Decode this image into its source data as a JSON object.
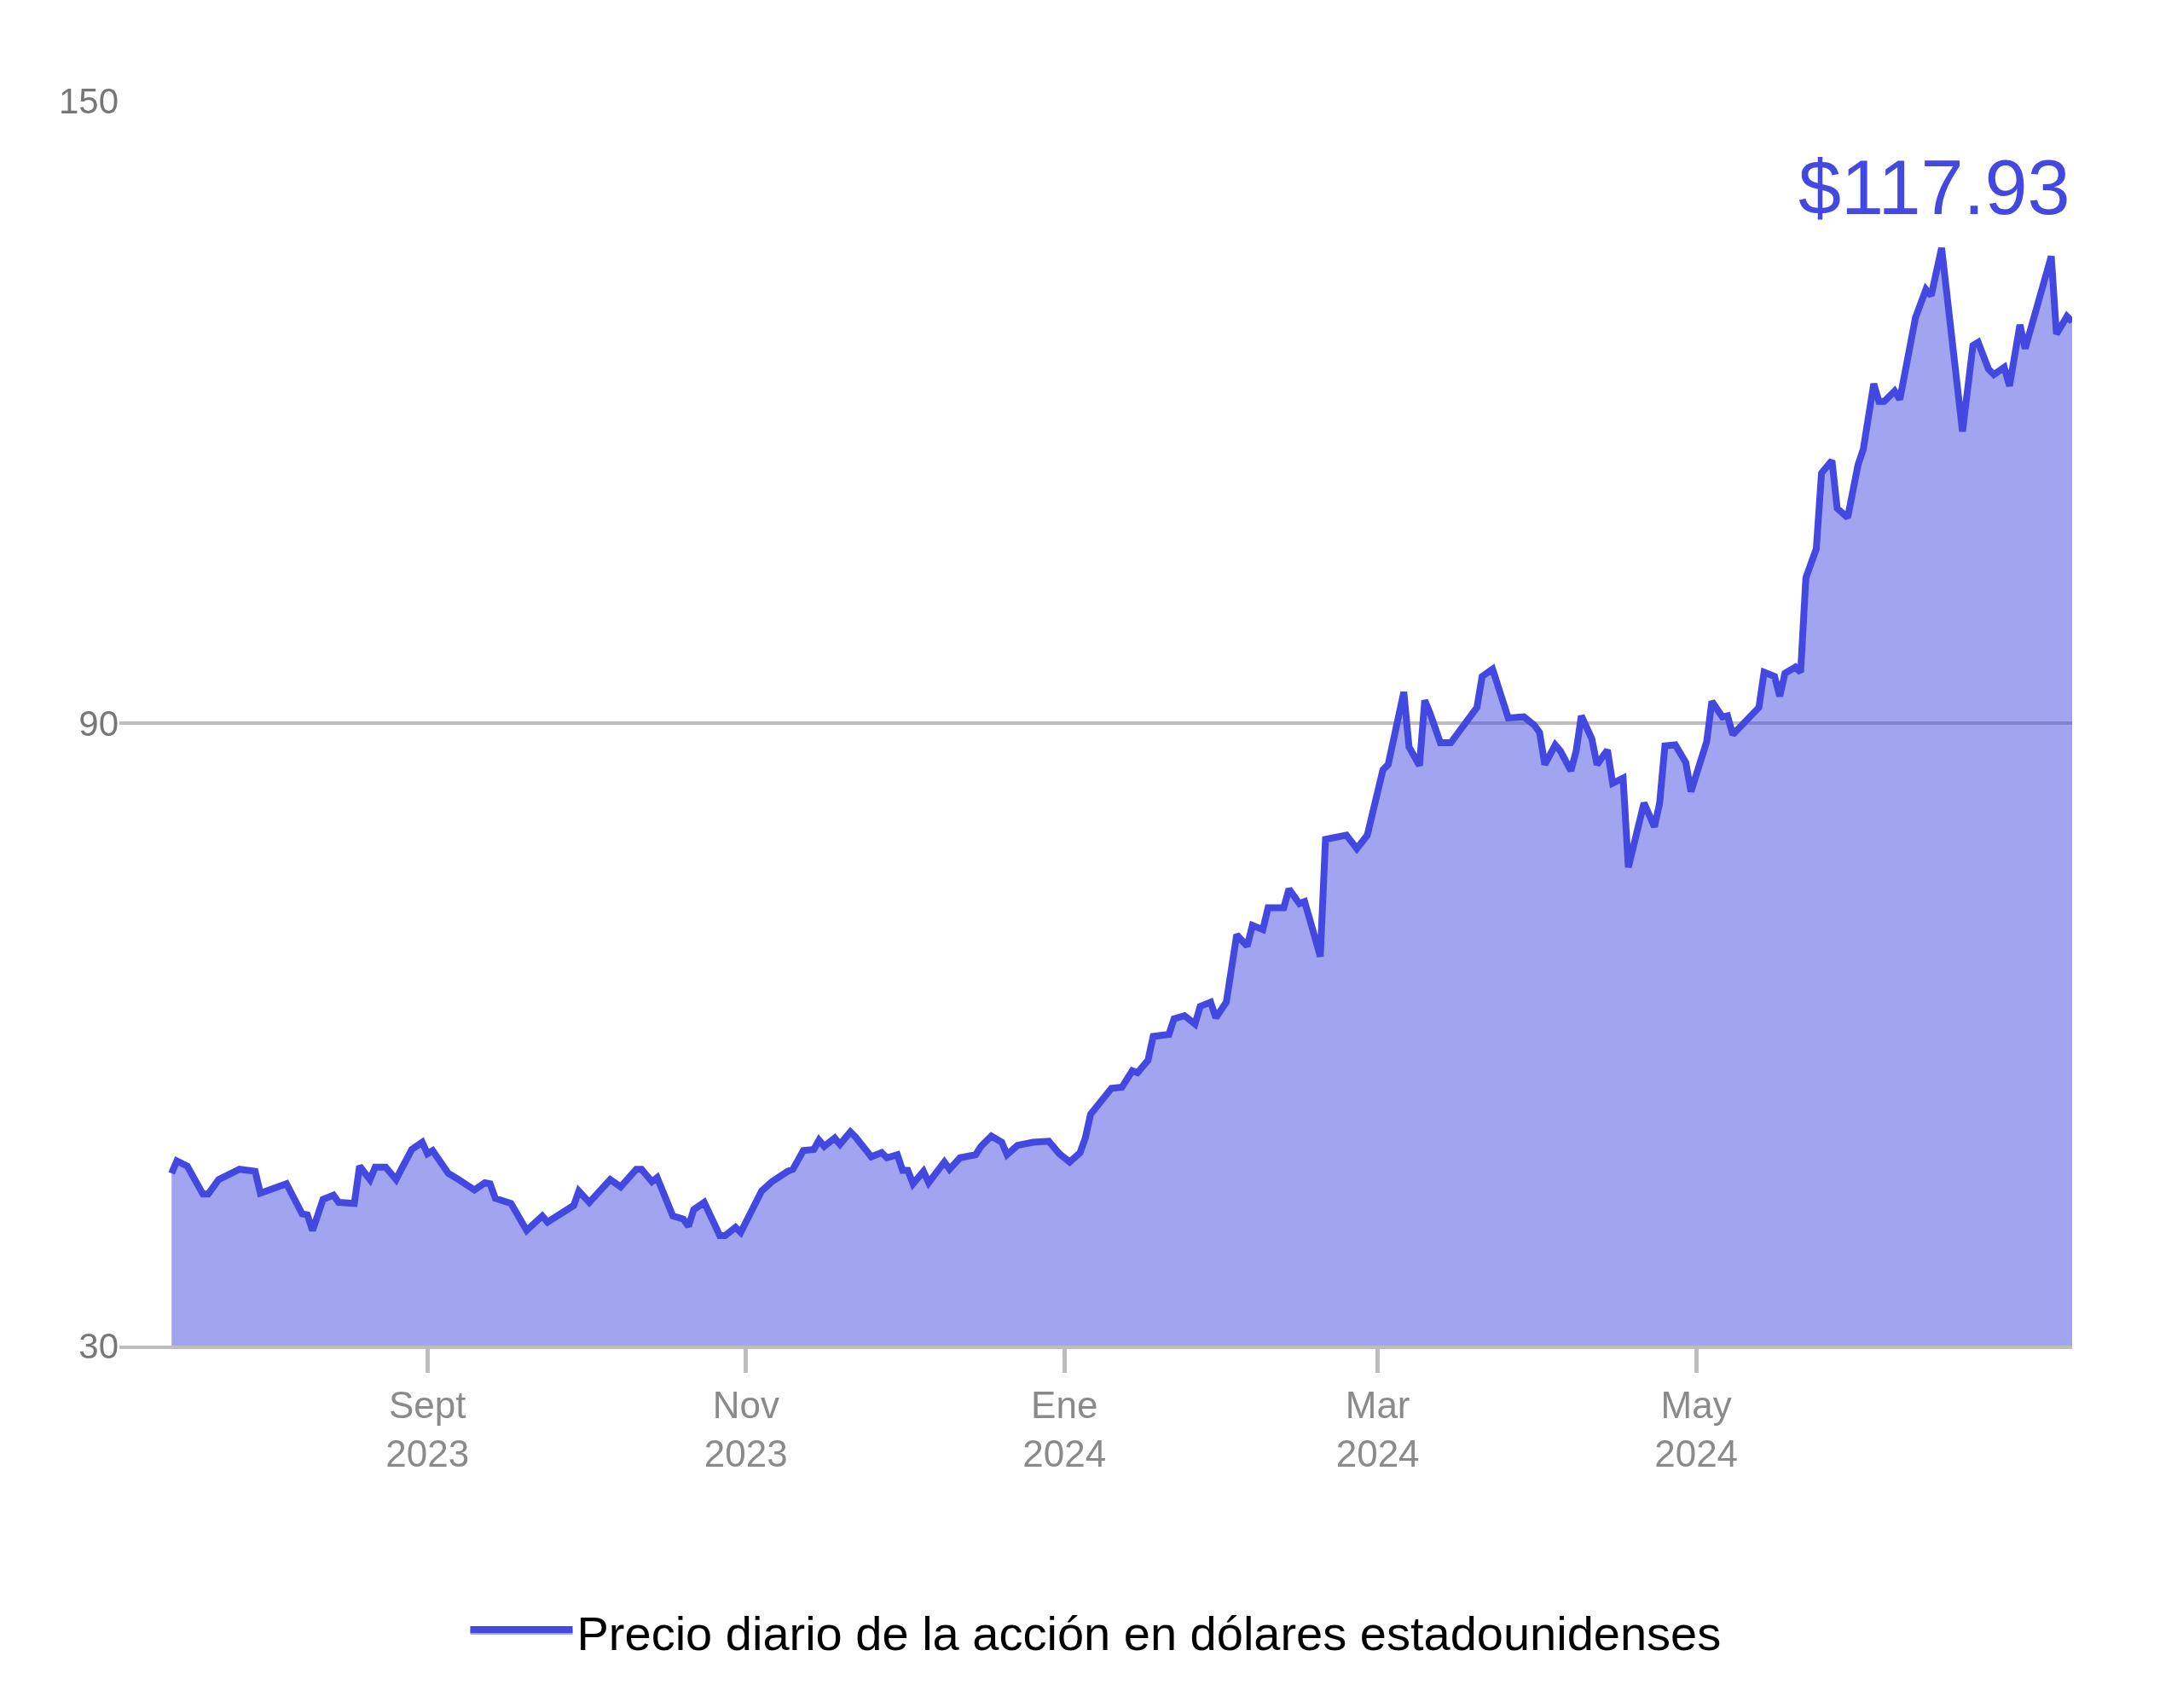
{
  "chart_data": {
    "type": "area",
    "x": [
      "2023-07-14",
      "2023-07-15",
      "2023-07-17",
      "2023-07-20",
      "2023-07-21",
      "2023-07-23",
      "2023-07-27",
      "2023-07-30",
      "2023-07-31",
      "2023-08-05",
      "2023-08-08",
      "2023-08-09",
      "2023-08-10",
      "2023-08-12",
      "2023-08-14",
      "2023-08-15",
      "2023-08-18",
      "2023-08-19",
      "2023-08-21",
      "2023-08-22",
      "2023-08-24",
      "2023-08-26",
      "2023-08-27",
      "2023-08-29",
      "2023-08-31",
      "2023-09-01",
      "2023-09-02",
      "2023-09-05",
      "2023-09-07",
      "2023-09-10",
      "2023-09-12",
      "2023-09-13",
      "2023-09-14",
      "2023-09-17",
      "2023-09-20",
      "2023-09-23",
      "2023-09-24",
      "2023-09-29",
      "2023-09-30",
      "2023-10-02",
      "2023-10-06",
      "2023-10-08",
      "2023-10-11",
      "2023-10-12",
      "2023-10-14",
      "2023-10-15",
      "2023-10-18",
      "2023-10-20",
      "2023-10-21",
      "2023-10-22",
      "2023-10-24",
      "2023-10-27",
      "2023-10-28",
      "2023-10-30",
      "2023-10-31",
      "2023-11-04",
      "2023-11-06",
      "2023-11-09",
      "2023-11-10",
      "2023-11-12",
      "2023-11-14",
      "2023-11-15",
      "2023-11-16",
      "2023-11-18",
      "2023-11-19",
      "2023-11-21",
      "2023-11-22",
      "2023-11-25",
      "2023-11-27",
      "2023-11-28",
      "2023-11-30",
      "2023-12-01",
      "2023-12-02",
      "2023-12-03",
      "2023-12-05",
      "2023-12-06",
      "2023-12-09",
      "2023-12-10",
      "2023-12-12",
      "2023-12-15",
      "2023-12-16",
      "2023-12-18",
      "2023-12-20",
      "2023-12-21",
      "2023-12-23",
      "2023-12-26",
      "2023-12-29",
      "2023-12-31",
      "2024-01-02",
      "2024-01-04",
      "2024-01-05",
      "2024-01-06",
      "2024-01-10",
      "2024-01-12",
      "2024-01-14",
      "2024-01-15",
      "2024-01-17",
      "2024-01-18",
      "2024-01-21",
      "2024-01-22",
      "2024-01-24",
      "2024-01-26",
      "2024-01-27",
      "2024-01-29",
      "2024-01-30",
      "2024-02-01",
      "2024-02-03",
      "2024-02-05",
      "2024-02-06",
      "2024-02-08",
      "2024-02-09",
      "2024-02-12",
      "2024-02-13",
      "2024-02-15",
      "2024-02-16",
      "2024-02-18",
      "2024-02-19",
      "2024-02-20",
      "2024-02-24",
      "2024-02-26",
      "2024-02-28",
      "2024-03-02",
      "2024-03-03",
      "2024-03-06",
      "2024-03-07",
      "2024-03-09",
      "2024-03-10",
      "2024-03-11",
      "2024-03-13",
      "2024-03-15",
      "2024-03-20",
      "2024-03-21",
      "2024-03-23",
      "2024-03-26",
      "2024-03-29",
      "2024-03-31",
      "2024-04-01",
      "2024-04-02",
      "2024-04-04",
      "2024-04-05",
      "2024-04-07",
      "2024-04-08",
      "2024-04-09",
      "2024-04-11",
      "2024-04-12",
      "2024-04-14",
      "2024-04-15",
      "2024-04-17",
      "2024-04-18",
      "2024-04-21",
      "2024-04-23",
      "2024-04-24",
      "2024-04-25",
      "2024-04-27",
      "2024-04-29",
      "2024-04-30",
      "2024-05-03",
      "2024-05-04",
      "2024-05-06",
      "2024-05-07",
      "2024-05-08",
      "2024-05-13",
      "2024-05-14",
      "2024-05-16",
      "2024-05-17",
      "2024-05-18",
      "2024-05-20",
      "2024-05-21",
      "2024-05-22",
      "2024-05-24",
      "2024-05-25",
      "2024-05-27",
      "2024-05-28",
      "2024-05-30",
      "2024-06-01",
      "2024-06-02",
      "2024-06-04",
      "2024-06-05",
      "2024-06-06",
      "2024-06-08",
      "2024-06-09",
      "2024-06-12",
      "2024-06-14",
      "2024-06-15",
      "2024-06-17",
      "2024-06-21",
      "2024-06-23",
      "2024-06-24",
      "2024-06-26",
      "2024-06-27",
      "2024-06-29",
      "2024-06-30",
      "2024-07-02",
      "2024-07-03",
      "2024-07-08",
      "2024-07-09",
      "2024-07-11",
      "2024-07-12"
    ],
    "series": [
      {
        "name": "Precio diario de la acción en dólares estadounidenses",
        "color": "#4349e0",
        "values": [
          46.6,
          47.8,
          47.3,
          44.6,
          44.6,
          46.0,
          47.0,
          46.8,
          44.7,
          45.6,
          42.7,
          42.6,
          41.1,
          44.1,
          44.5,
          43.8,
          43.7,
          47.3,
          46.0,
          47.2,
          47.2,
          46.0,
          47.0,
          48.9,
          49.6,
          48.5,
          48.8,
          46.6,
          46.0,
          45.0,
          45.7,
          45.6,
          44.2,
          43.7,
          41.1,
          42.5,
          41.9,
          43.5,
          44.9,
          43.8,
          46.0,
          45.3,
          47.0,
          47.0,
          45.8,
          46.2,
          42.5,
          42.2,
          41.5,
          43.1,
          43.8,
          40.6,
          40.6,
          41.4,
          40.9,
          44.9,
          45.8,
          46.8,
          47.0,
          48.8,
          48.9,
          49.8,
          49.2,
          50.0,
          49.4,
          50.6,
          50.1,
          48.2,
          48.6,
          48.1,
          48.4,
          46.9,
          46.9,
          45.6,
          46.8,
          45.7,
          47.7,
          47.0,
          48.1,
          48.4,
          49.2,
          50.2,
          49.6,
          48.4,
          49.3,
          49.6,
          49.7,
          48.5,
          47.7,
          48.6,
          50.0,
          52.3,
          54.8,
          54.9,
          56.5,
          56.3,
          57.5,
          59.8,
          60.0,
          61.5,
          61.8,
          61.0,
          62.7,
          63.1,
          61.6,
          63.1,
          69.6,
          68.5,
          70.5,
          70.1,
          72.2,
          72.2,
          74.0,
          72.6,
          72.8,
          69.3,
          67.5,
          78.8,
          79.2,
          77.9,
          79.2,
          85.5,
          86.0,
          93.0,
          87.7,
          85.9,
          92.2,
          91.0,
          88.1,
          88.1,
          91.5,
          94.5,
          95.2,
          90.5,
          90.6,
          89.8,
          89.1,
          86.0,
          87.9,
          87.3,
          85.4,
          87.3,
          90.7,
          88.5,
          86.0,
          87.4,
          84.2,
          84.7,
          76.1,
          82.3,
          80.0,
          82.3,
          87.8,
          87.9,
          86.2,
          83.4,
          88.2,
          92.1,
          90.6,
          90.7,
          88.9,
          91.5,
          94.9,
          94.5,
          92.6,
          94.8,
          95.4,
          94.9,
          104.0,
          106.8,
          114.1,
          115.3,
          110.7,
          109.8,
          114.9,
          116.4,
          122.7,
          121.0,
          121.0,
          122.0,
          121.2,
          129.1,
          131.8,
          131.2,
          135.8,
          118.1,
          126.4,
          126.7,
          124.1,
          123.6,
          124.3,
          122.5,
          128.4,
          126.1,
          135.0,
          127.5,
          129.2,
          128.7
        ]
      }
    ],
    "annotations": [
      "$117.93"
    ],
    "xlim": [
      "2023-07-04",
      "2024-07-12"
    ],
    "xticks": [
      {
        "value": "2023-09-01",
        "label": "Sept\n2023"
      },
      {
        "value": "2023-11-01",
        "label": "Nov\n2023"
      },
      {
        "value": "2024-01-01",
        "label": "Ene\n2024"
      },
      {
        "value": "2024-03-01",
        "label": "Mar\n2024"
      },
      {
        "value": "2024-05-01",
        "label": "May\n2024"
      }
    ],
    "ylim": [
      30,
      150
    ],
    "yticks": [
      30,
      90,
      150
    ],
    "grid": "y",
    "legend": "bottom",
    "line_style": "solid",
    "marker": "none"
  }
}
